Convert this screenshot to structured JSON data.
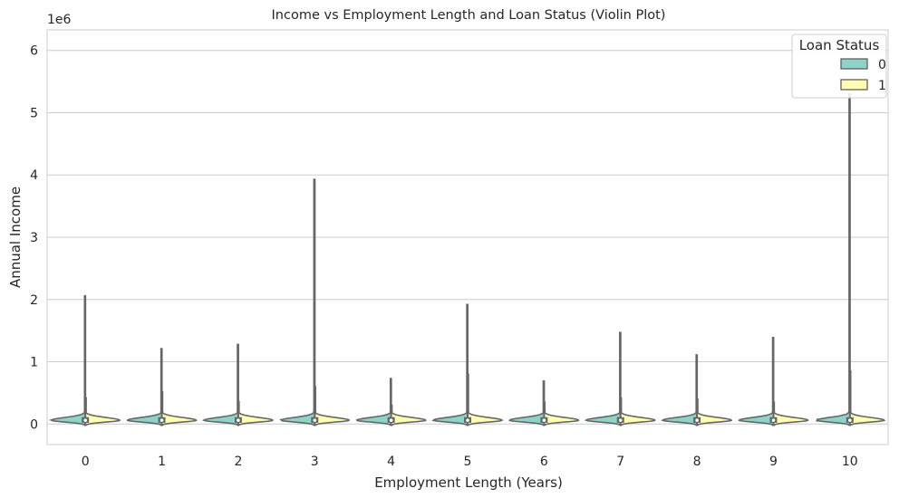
{
  "chart_data": {
    "type": "violin",
    "title": "Income vs Employment Length and Loan Status (Violin Plot)",
    "xlabel": "Employment Length (Years)",
    "ylabel": "Annual Income",
    "y_offset_label": "1e6",
    "y_scale": 1000000,
    "ylim": [
      -330000,
      6330000
    ],
    "yticks": [
      0,
      1,
      2,
      3,
      4,
      5,
      6
    ],
    "categories": [
      "0",
      "1",
      "2",
      "3",
      "4",
      "5",
      "6",
      "7",
      "8",
      "9",
      "10"
    ],
    "grid": true,
    "legend": {
      "title": "Loan Status",
      "position": "top-right",
      "entries": [
        "0",
        "1"
      ]
    },
    "series": [
      {
        "name": "0",
        "color": "#8dd3c7",
        "max": [
          2060000,
          1210000,
          1280000,
          3930000,
          730000,
          1920000,
          690000,
          1470000,
          1110000,
          1390000,
          5300000
        ]
      },
      {
        "name": "1",
        "color": "#ffffb3",
        "max": [
          420000,
          520000,
          360000,
          600000,
          300000,
          800000,
          350000,
          420000,
          400000,
          350000,
          850000
        ]
      }
    ],
    "median_approx": 60000
  }
}
